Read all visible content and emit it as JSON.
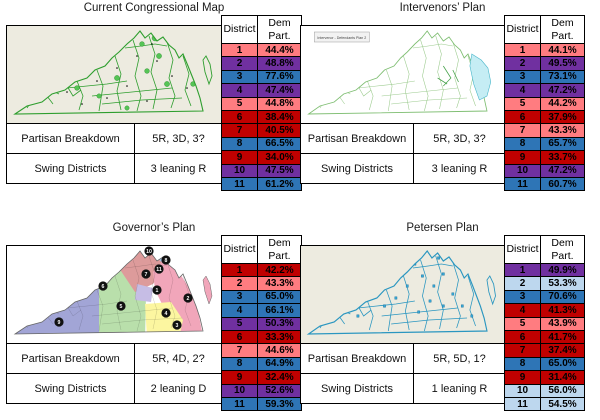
{
  "table_header": {
    "district": "District",
    "dem": "Dem",
    "part": "Part."
  },
  "colors": {
    "dark_red": "#C00000",
    "light_red": "#FF7C80",
    "purple": "#7030A0",
    "blue": "#2E75B6",
    "light_blue": "#BDD7EE"
  },
  "panels": [
    {
      "title": "Current Congressional Map",
      "breakdown_label": "Partisan Breakdown",
      "breakdown_value": "5R, 3D, 3?",
      "swing_label": "Swing Districts",
      "swing_value": "3 leaning R",
      "map_style": "green-counties",
      "map_label": "",
      "districts": [
        {
          "n": "1",
          "v": "44.4%",
          "c": "light_red"
        },
        {
          "n": "2",
          "v": "48.8%",
          "c": "purple"
        },
        {
          "n": "3",
          "v": "77.6%",
          "c": "blue"
        },
        {
          "n": "4",
          "v": "47.4%",
          "c": "purple"
        },
        {
          "n": "5",
          "v": "44.8%",
          "c": "light_red"
        },
        {
          "n": "6",
          "v": "38.4%",
          "c": "dark_red"
        },
        {
          "n": "7",
          "v": "40.5%",
          "c": "dark_red"
        },
        {
          "n": "8",
          "v": "66.5%",
          "c": "blue"
        },
        {
          "n": "9",
          "v": "34.0%",
          "c": "dark_red"
        },
        {
          "n": "10",
          "v": "47.5%",
          "c": "purple"
        },
        {
          "n": "11",
          "v": "61.2%",
          "c": "blue"
        }
      ]
    },
    {
      "title": "Intervenors’ Plan",
      "breakdown_label": "Partisan Breakdown",
      "breakdown_value": "5R, 3D, 3?",
      "swing_label": "Swing Districts",
      "swing_value": "3 leaning R",
      "map_style": "intervenor",
      "map_label": "Intervenor - Defendants Plan 2",
      "districts": [
        {
          "n": "1",
          "v": "44.1%",
          "c": "light_red"
        },
        {
          "n": "2",
          "v": "49.5%",
          "c": "purple"
        },
        {
          "n": "3",
          "v": "73.1%",
          "c": "blue"
        },
        {
          "n": "4",
          "v": "47.2%",
          "c": "purple"
        },
        {
          "n": "5",
          "v": "44.2%",
          "c": "light_red"
        },
        {
          "n": "6",
          "v": "37.9%",
          "c": "dark_red"
        },
        {
          "n": "7",
          "v": "43.3%",
          "c": "light_red"
        },
        {
          "n": "8",
          "v": "65.7%",
          "c": "blue"
        },
        {
          "n": "9",
          "v": "33.7%",
          "c": "dark_red"
        },
        {
          "n": "10",
          "v": "47.2%",
          "c": "purple"
        },
        {
          "n": "11",
          "v": "60.7%",
          "c": "blue"
        }
      ]
    },
    {
      "title": "Governor’s Plan",
      "breakdown_label": "Partisan Breakdown",
      "breakdown_value": "5R, 4D, 2?",
      "swing_label": "Swing Districts",
      "swing_value": "2 leaning D",
      "map_style": "districts",
      "map_label": "",
      "districts": [
        {
          "n": "1",
          "v": "42.2%",
          "c": "dark_red"
        },
        {
          "n": "2",
          "v": "43.3%",
          "c": "light_red"
        },
        {
          "n": "3",
          "v": "65.0%",
          "c": "blue"
        },
        {
          "n": "4",
          "v": "66.1%",
          "c": "blue"
        },
        {
          "n": "5",
          "v": "50.3%",
          "c": "purple"
        },
        {
          "n": "6",
          "v": "33.3%",
          "c": "dark_red"
        },
        {
          "n": "7",
          "v": "44.6%",
          "c": "light_red"
        },
        {
          "n": "8",
          "v": "64.9%",
          "c": "blue"
        },
        {
          "n": "9",
          "v": "32.4%",
          "c": "dark_red"
        },
        {
          "n": "10",
          "v": "52.6%",
          "c": "purple"
        },
        {
          "n": "11",
          "v": "59.3%",
          "c": "blue"
        }
      ]
    },
    {
      "title": "Petersen Plan",
      "breakdown_label": "Partisan Breakdown",
      "breakdown_value": "5R, 5D, 1?",
      "swing_label": "Swing Districts",
      "swing_value": "1 leaning R",
      "map_style": "teal-counties",
      "map_label": "",
      "districts": [
        {
          "n": "1",
          "v": "49.9%",
          "c": "purple"
        },
        {
          "n": "2",
          "v": "53.3%",
          "c": "light_blue"
        },
        {
          "n": "3",
          "v": "70.6%",
          "c": "blue"
        },
        {
          "n": "4",
          "v": "41.3%",
          "c": "dark_red"
        },
        {
          "n": "5",
          "v": "43.9%",
          "c": "light_red"
        },
        {
          "n": "6",
          "v": "41.7%",
          "c": "dark_red"
        },
        {
          "n": "7",
          "v": "37.4%",
          "c": "dark_red"
        },
        {
          "n": "8",
          "v": "65.0%",
          "c": "blue"
        },
        {
          "n": "9",
          "v": "31.4%",
          "c": "dark_red"
        },
        {
          "n": "10",
          "v": "56.0%",
          "c": "light_blue"
        },
        {
          "n": "11",
          "v": "54.5%",
          "c": "light_blue"
        }
      ]
    }
  ]
}
